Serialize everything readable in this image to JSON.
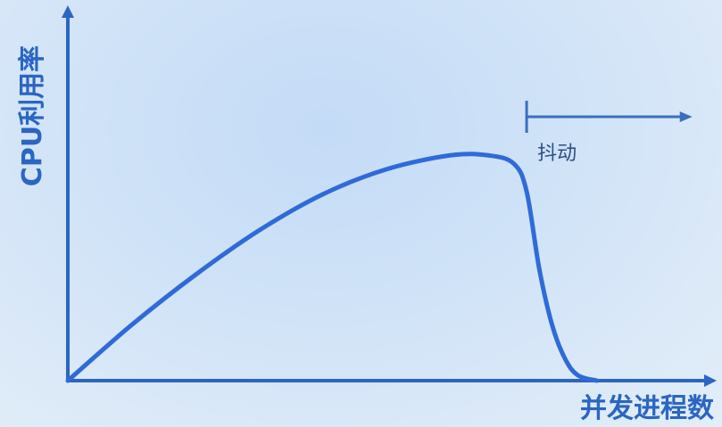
{
  "chart_data": {
    "type": "line",
    "title": "",
    "xlabel": "并发进程数",
    "ylabel": "CPU利用率",
    "xlim": [
      0,
      100
    ],
    "ylim": [
      0,
      100
    ],
    "grid": false,
    "legend": "none",
    "series": [
      {
        "x": [
          0,
          10,
          20,
          30,
          40,
          50,
          60,
          66,
          70,
          72,
          74,
          76,
          78,
          80,
          83
        ],
        "values": [
          0,
          20,
          38,
          54,
          67,
          76,
          81,
          81,
          78,
          68,
          40,
          20,
          8,
          2,
          0
        ]
      }
    ],
    "annotation": {
      "text": "抖动",
      "x_start": 72,
      "x_end": 98
    },
    "colors": {
      "axis": "#2a66c2",
      "curve": "#2f6bd8",
      "annotation": "#3a6fbf"
    }
  }
}
